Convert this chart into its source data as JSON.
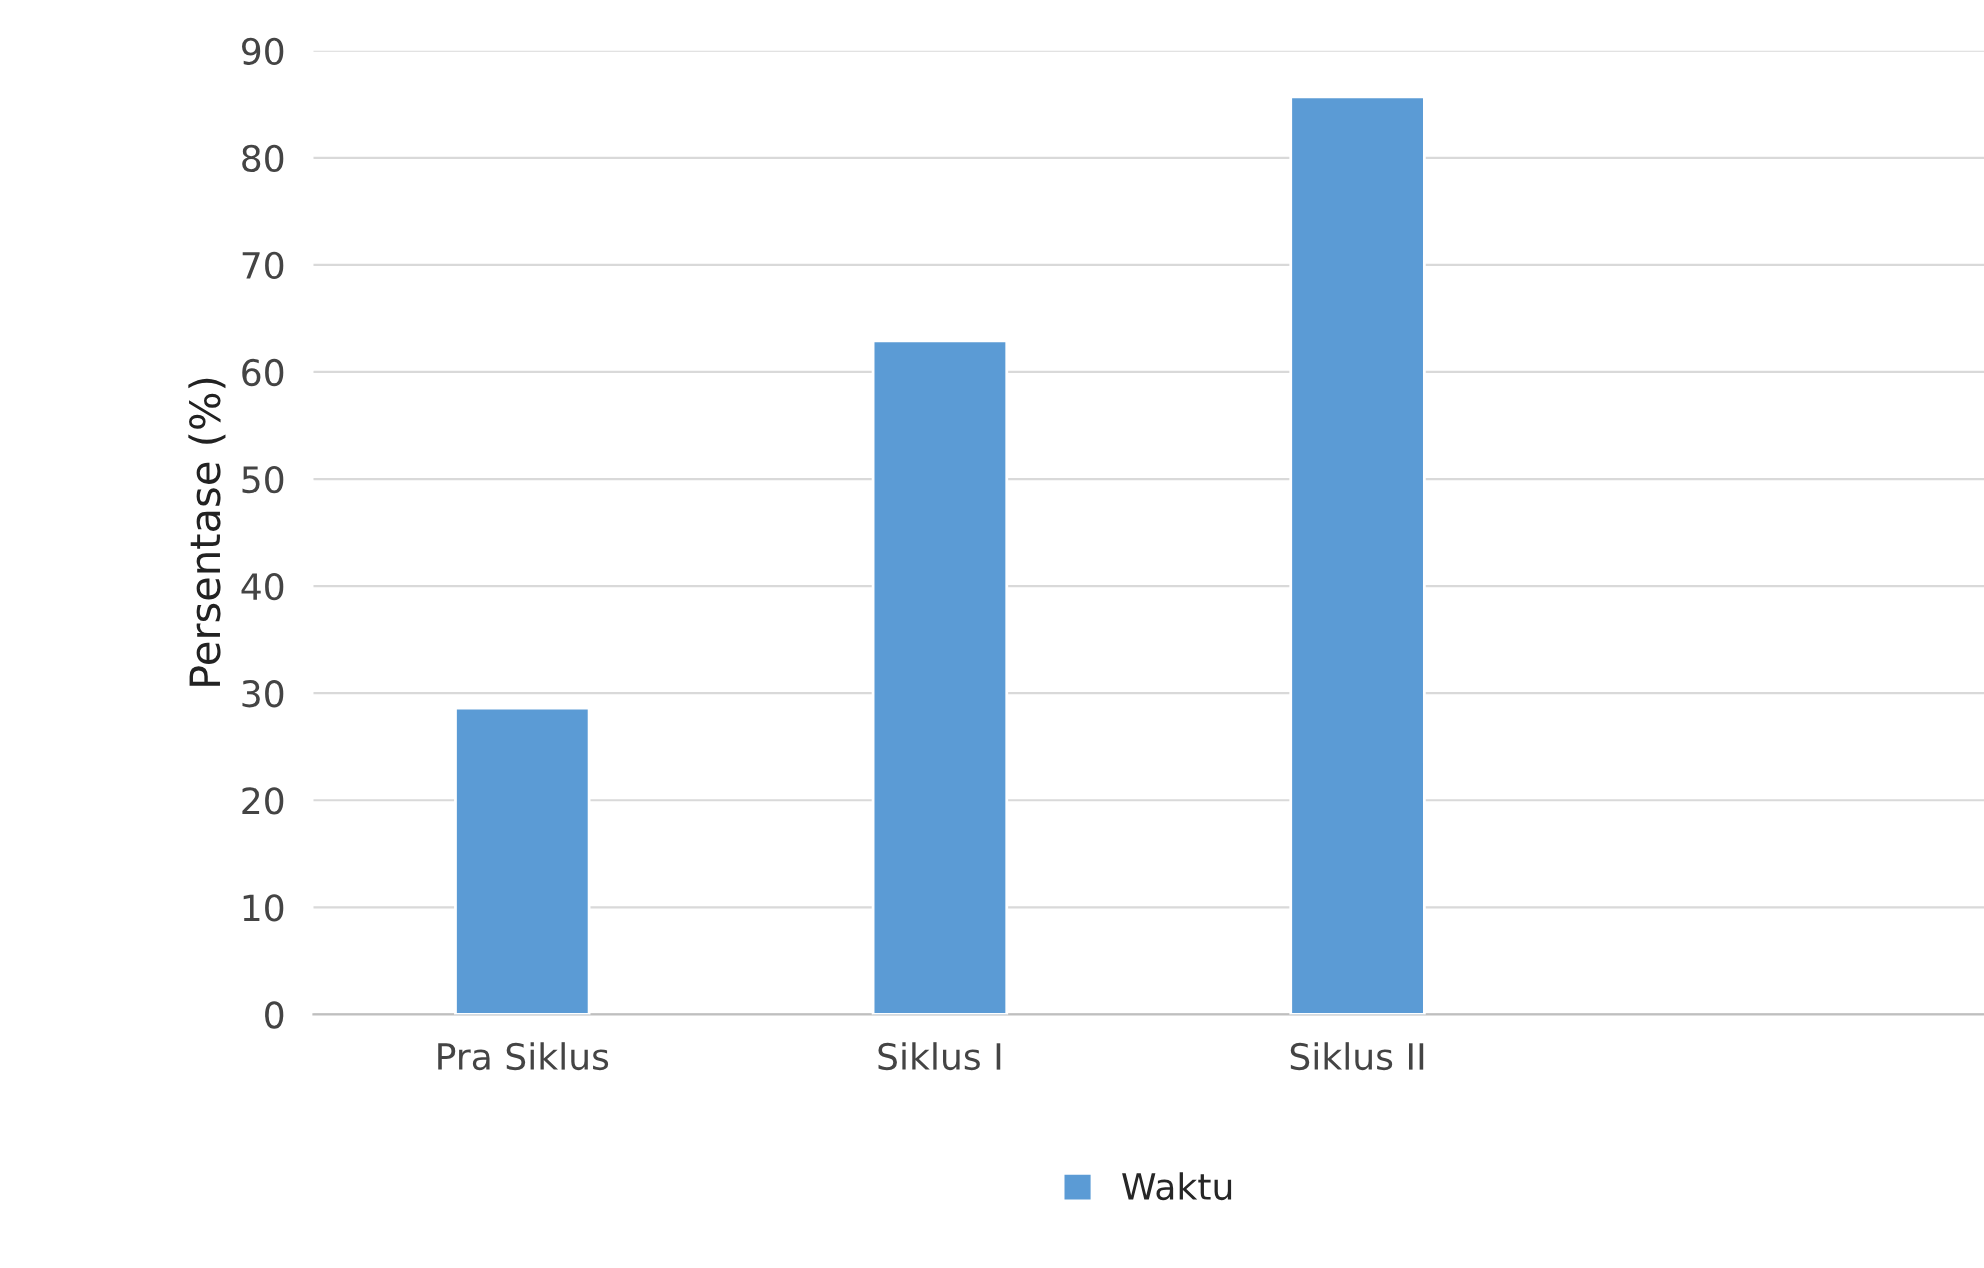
{
  "chart_data": {
    "type": "bar",
    "ylabel": "Persentase (%)",
    "categories": [
      "Pra Siklus",
      "Siklus I",
      "Siklus II",
      null
    ],
    "series": [
      {
        "name": "Waktu",
        "color": "#5b9bd5",
        "values": [
          28.6,
          62.9,
          85.7,
          null
        ]
      }
    ],
    "ylim": [
      0,
      90
    ],
    "yticks": [
      0,
      10,
      20,
      30,
      40,
      50,
      60,
      70,
      80,
      90
    ],
    "grid": "y",
    "legend": "bottom"
  }
}
